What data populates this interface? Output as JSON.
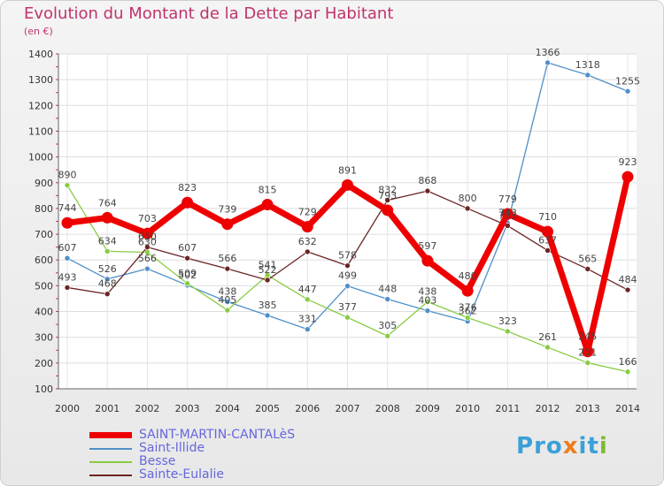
{
  "title": "Evolution du Montant de la Dette par Habitant",
  "subtitle": "(en €)",
  "logo": "Proxiti",
  "chart_data": {
    "type": "line",
    "categories": [
      "2000",
      "2001",
      "2002",
      "2003",
      "2004",
      "2005",
      "2006",
      "2007",
      "2008",
      "2009",
      "2010",
      "2011",
      "2012",
      "2013",
      "2014"
    ],
    "ylim": [
      100,
      1400
    ],
    "yticks": [
      100,
      200,
      300,
      400,
      500,
      600,
      700,
      800,
      900,
      1000,
      1100,
      1200,
      1300,
      1400
    ],
    "grid": true,
    "legend_position": "bottom-left",
    "series": [
      {
        "name": "SAINT-MARTIN-CANTALèS",
        "color": "#ee0000",
        "values": [
          744,
          764,
          703,
          823,
          739,
          815,
          729,
          891,
          793,
          597,
          480,
          779,
          710,
          245,
          923
        ]
      },
      {
        "name": "Saint-Illide",
        "color": "#4f8fc8",
        "values": [
          607,
          526,
          566,
          502,
          438,
          385,
          331,
          499,
          448,
          403,
          362,
          743,
          1366,
          1318,
          1255
        ]
      },
      {
        "name": "Besse",
        "color": "#88cc44",
        "values": [
          890,
          634,
          630,
          509,
          405,
          541,
          447,
          377,
          305,
          438,
          376,
          323,
          261,
          201,
          166
        ]
      },
      {
        "name": "Sainte-Eulalie",
        "color": "#6b2424",
        "values": [
          493,
          468,
          650,
          607,
          566,
          522,
          632,
          578,
          832,
          868,
          800,
          733,
          637,
          565,
          484
        ]
      }
    ]
  }
}
